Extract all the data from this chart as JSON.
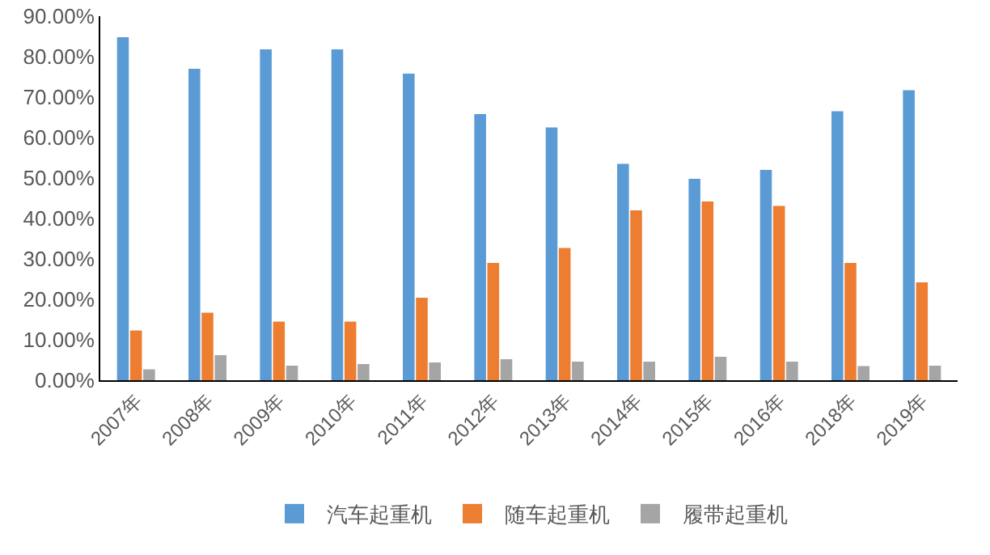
{
  "chart_data": {
    "type": "bar",
    "categories": [
      "2007年",
      "2008年",
      "2009年",
      "2010年",
      "2011年",
      "2012年",
      "2013年",
      "2014年",
      "2015年",
      "2016年",
      "2018年",
      "2019年"
    ],
    "series": [
      {
        "name": "汽车起重机",
        "color": "#5b9bd5",
        "values": [
          84.8,
          77,
          81.8,
          81.8,
          75.8,
          65.8,
          62.5,
          53.5,
          49.8,
          52,
          66.5,
          71.7
        ]
      },
      {
        "name": "随车起重机",
        "color": "#ed7d31",
        "values": [
          12.3,
          16.7,
          14.5,
          14.5,
          20.4,
          29,
          32.7,
          42,
          44.2,
          43.1,
          29,
          24.2
        ]
      },
      {
        "name": "履带起重机",
        "color": "#a5a5a5",
        "values": [
          2.7,
          6.2,
          3.6,
          4,
          4.4,
          5.2,
          4.6,
          4.6,
          5.8,
          4.6,
          3.5,
          3.6
        ]
      }
    ],
    "ylim": [
      0,
      90
    ],
    "yticks": [
      {
        "value": 0,
        "label": "0.00%"
      },
      {
        "value": 10,
        "label": "10.00%"
      },
      {
        "value": 20,
        "label": "20.00%"
      },
      {
        "value": 30,
        "label": "30.00%"
      },
      {
        "value": 40,
        "label": "40.00%"
      },
      {
        "value": 50,
        "label": "50.00%"
      },
      {
        "value": 60,
        "label": "60.00%"
      },
      {
        "value": 70,
        "label": "70.00%"
      },
      {
        "value": 80,
        "label": "80.00%"
      },
      {
        "value": 90,
        "label": "90.00%"
      }
    ],
    "grid": false,
    "legend": "bottom"
  }
}
